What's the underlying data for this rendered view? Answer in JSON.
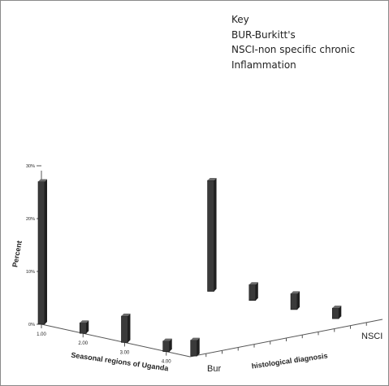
{
  "chart_data": {
    "type": "bar",
    "title": "",
    "ylabel": "Percent",
    "xlabel": "Seasonal regions of Uganda",
    "zlabel": "histological diagnosis",
    "x_categories": [
      "1.00",
      "2.00",
      "3.00",
      "4.00"
    ],
    "z_categories": [
      "Bur",
      "NSCI"
    ],
    "yticks": [
      "0%",
      "10%",
      "20%",
      "30%"
    ],
    "ylim": [
      0,
      30
    ],
    "series": [
      {
        "name": "Bur",
        "values": [
          27,
          2,
          5,
          2
        ]
      },
      {
        "name": "NSCI",
        "values": [
          21,
          3,
          3,
          2
        ]
      }
    ],
    "extra_bar_mid_depth": 3,
    "bar_color": "#3a3a3a",
    "key": {
      "heading": "Key",
      "lines": [
        "BUR-Burkitt's",
        "NSCI-non specific chronic",
        "Inflammation"
      ]
    }
  }
}
